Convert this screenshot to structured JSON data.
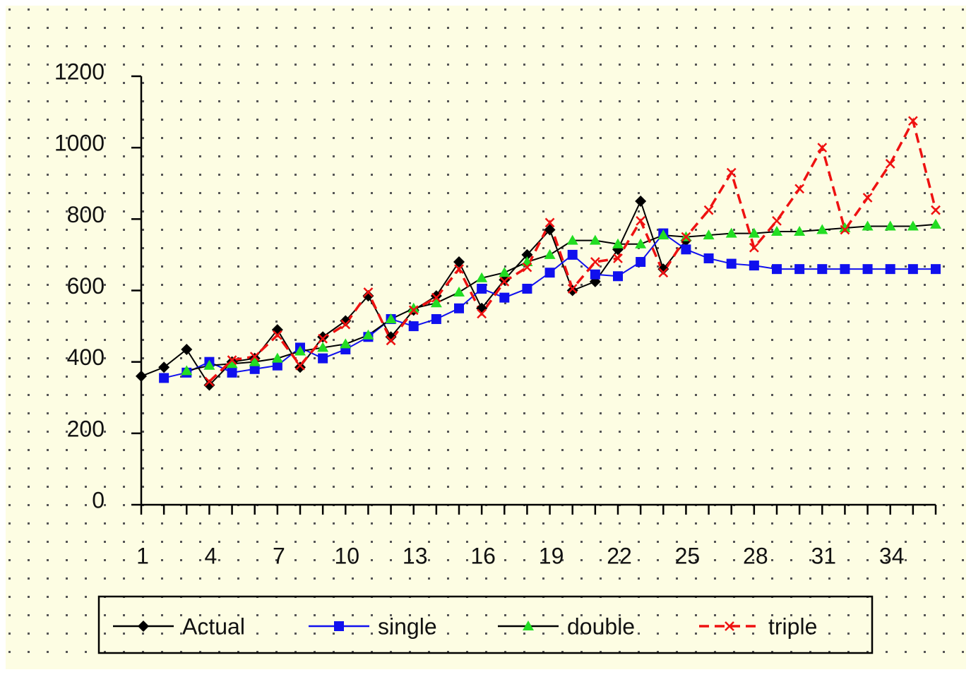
{
  "chart_data": {
    "type": "line",
    "categories": [
      "1",
      null,
      null,
      "4",
      null,
      null,
      "7",
      null,
      null,
      "10",
      null,
      null,
      "13",
      null,
      null,
      "16",
      null,
      null,
      "19",
      null,
      null,
      "22",
      null,
      null,
      "25",
      null,
      null,
      "28",
      null,
      null,
      "31",
      null,
      null,
      "34",
      null,
      null
    ],
    "series": [
      {
        "name": "Actual",
        "color": "#000000",
        "marker": "diamond",
        "marker_color": "#000000",
        "line_style": "solid",
        "values": [
          360,
          385,
          435,
          335,
          400,
          410,
          490,
          385,
          470,
          515,
          585,
          470,
          545,
          585,
          680,
          550,
          630,
          700,
          770,
          600,
          625,
          715,
          850,
          660,
          740,
          null,
          null,
          null,
          null,
          null,
          null,
          null,
          null,
          null,
          null,
          null
        ]
      },
      {
        "name": "single",
        "color": "#1010ee",
        "marker": "square",
        "marker_color": "#1010ee",
        "line_style": "solid",
        "values": [
          null,
          355,
          370,
          400,
          370,
          380,
          390,
          440,
          410,
          435,
          470,
          520,
          500,
          520,
          550,
          605,
          580,
          605,
          650,
          700,
          645,
          640,
          680,
          760,
          715,
          690,
          675,
          670,
          660,
          660,
          660,
          660,
          660,
          660,
          660,
          660
        ]
      },
      {
        "name": "double",
        "color": "#000000",
        "marker": "triangle",
        "marker_color": "#22dd22",
        "line_style": "solid",
        "values": [
          null,
          null,
          375,
          390,
          395,
          400,
          410,
          430,
          440,
          450,
          475,
          520,
          550,
          565,
          595,
          635,
          650,
          680,
          700,
          740,
          740,
          730,
          730,
          755,
          750,
          755,
          760,
          760,
          765,
          765,
          770,
          775,
          780,
          780,
          780,
          785
        ]
      },
      {
        "name": "triple",
        "color": "#ee1111",
        "marker": "x",
        "marker_color": "#ee1111",
        "line_style": "dashed",
        "values": [
          null,
          null,
          null,
          345,
          405,
          415,
          475,
          390,
          465,
          505,
          595,
          460,
          545,
          580,
          660,
          535,
          625,
          665,
          790,
          605,
          680,
          690,
          795,
          650,
          750,
          825,
          930,
          720,
          795,
          885,
          1000,
          770,
          860,
          955,
          1075,
          825
        ]
      }
    ],
    "ylim": [
      0,
      1200
    ],
    "yticks": [
      0,
      200,
      400,
      600,
      800,
      1000,
      1200
    ],
    "legend": "bottom"
  }
}
